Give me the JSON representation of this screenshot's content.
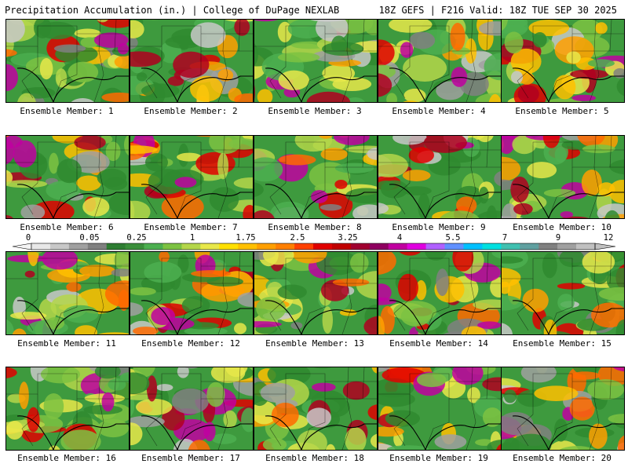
{
  "header": {
    "left": "Precipitation Accumulation (in.) | College of DuPage NEXLAB",
    "right": "18Z GEFS | F216 Valid: 18Z TUE SEP 30 2025"
  },
  "colorbar": {
    "tick_labels": [
      "0",
      "0.05",
      "0.25",
      "1",
      "1.75",
      "2.5",
      "3.25",
      "4",
      "5.5",
      "7",
      "9",
      "12"
    ],
    "colors": [
      "#e8e8e8",
      "#c8c8c8",
      "#a0a0a0",
      "#808080",
      "#2e7d32",
      "#3a8e3a",
      "#4caf50",
      "#7cc242",
      "#b4d64a",
      "#e8e84a",
      "#ffe000",
      "#ffc000",
      "#ff9f00",
      "#ff7f00",
      "#ff4000",
      "#e00000",
      "#c00000",
      "#a00030",
      "#8e0060",
      "#c000a0",
      "#e000e0",
      "#b060ff",
      "#6090ff",
      "#00c0ff",
      "#00e0e0",
      "#40c0b0",
      "#60a0a0",
      "#808080",
      "#a0a0a0",
      "#c0c0c0"
    ]
  },
  "members": [
    {
      "label": "Ensemble Member: 1"
    },
    {
      "label": "Ensemble Member: 2"
    },
    {
      "label": "Ensemble Member: 3"
    },
    {
      "label": "Ensemble Member: 4"
    },
    {
      "label": "Ensemble Member: 5"
    },
    {
      "label": "Ensemble Member: 6"
    },
    {
      "label": "Ensemble Member: 7"
    },
    {
      "label": "Ensemble Member: 8"
    },
    {
      "label": "Ensemble Member: 9"
    },
    {
      "label": "Ensemble Member: 10"
    },
    {
      "label": "Ensemble Member: 11"
    },
    {
      "label": "Ensemble Member: 12"
    },
    {
      "label": "Ensemble Member: 13"
    },
    {
      "label": "Ensemble Member: 14"
    },
    {
      "label": "Ensemble Member: 15"
    },
    {
      "label": "Ensemble Member: 16"
    },
    {
      "label": "Ensemble Member: 17"
    },
    {
      "label": "Ensemble Member: 18"
    },
    {
      "label": "Ensemble Member: 19"
    },
    {
      "label": "Ensemble Member: 20"
    }
  ]
}
